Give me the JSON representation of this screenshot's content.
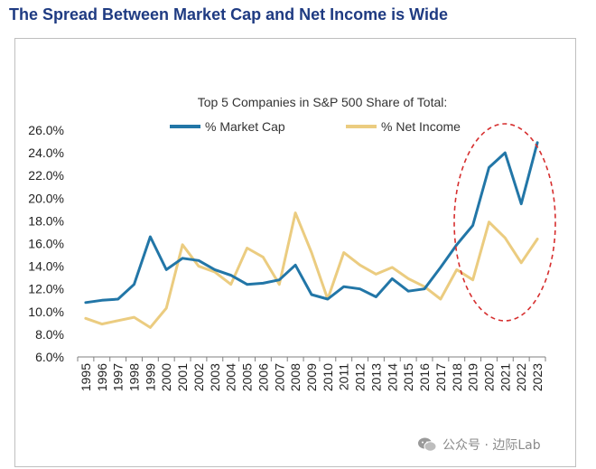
{
  "headline": "The Spread Between Market Cap and Net Income is Wide",
  "watermark": {
    "text": "公众号 · 边际Lab",
    "icon": "wechat-icon"
  },
  "colors": {
    "headline": "#1f3b82",
    "market_cap": "#2276a7",
    "net_income": "#ebcc80",
    "highlight": "#d62e2e"
  },
  "chart_data": {
    "type": "line",
    "title": "Top 5 Companies in S&P 500 Share of Total:",
    "xlabel": "",
    "ylabel": "",
    "ylim": [
      6.0,
      26.0
    ],
    "y_ticks": [
      "6.0%",
      "8.0%",
      "10.0%",
      "12.0%",
      "14.0%",
      "16.0%",
      "18.0%",
      "20.0%",
      "22.0%",
      "24.0%",
      "26.0%"
    ],
    "legend_position": "top",
    "categories": [
      "1995",
      "1996",
      "1997",
      "1998",
      "1999",
      "2000",
      "2001",
      "2002",
      "2003",
      "2004",
      "2005",
      "2006",
      "2007",
      "2008",
      "2009",
      "2010",
      "2011",
      "2012",
      "2013",
      "2014",
      "2015",
      "2016",
      "2017",
      "2018",
      "2019",
      "2020",
      "2021",
      "2022",
      "2023"
    ],
    "series": [
      {
        "name": "% Market Cap",
        "values": [
          10.8,
          11.0,
          11.1,
          12.4,
          16.6,
          13.7,
          14.7,
          14.5,
          13.7,
          13.2,
          12.4,
          12.5,
          12.8,
          14.1,
          11.5,
          11.1,
          12.2,
          12.0,
          11.3,
          12.9,
          11.8,
          12.0,
          13.9,
          15.9,
          17.6,
          22.7,
          24.0,
          19.5,
          24.9
        ]
      },
      {
        "name": "% Net Income",
        "values": [
          9.4,
          8.9,
          9.2,
          9.5,
          8.6,
          10.3,
          15.9,
          14.0,
          13.5,
          12.4,
          15.6,
          14.8,
          12.4,
          18.7,
          15.2,
          11.1,
          15.2,
          14.1,
          13.3,
          13.9,
          12.9,
          12.2,
          11.1,
          13.7,
          12.8,
          17.9,
          16.5,
          14.3,
          16.4
        ]
      }
    ],
    "annotations": [
      {
        "type": "dashed-ellipse",
        "around": [
          "2019",
          "2023"
        ]
      }
    ]
  }
}
